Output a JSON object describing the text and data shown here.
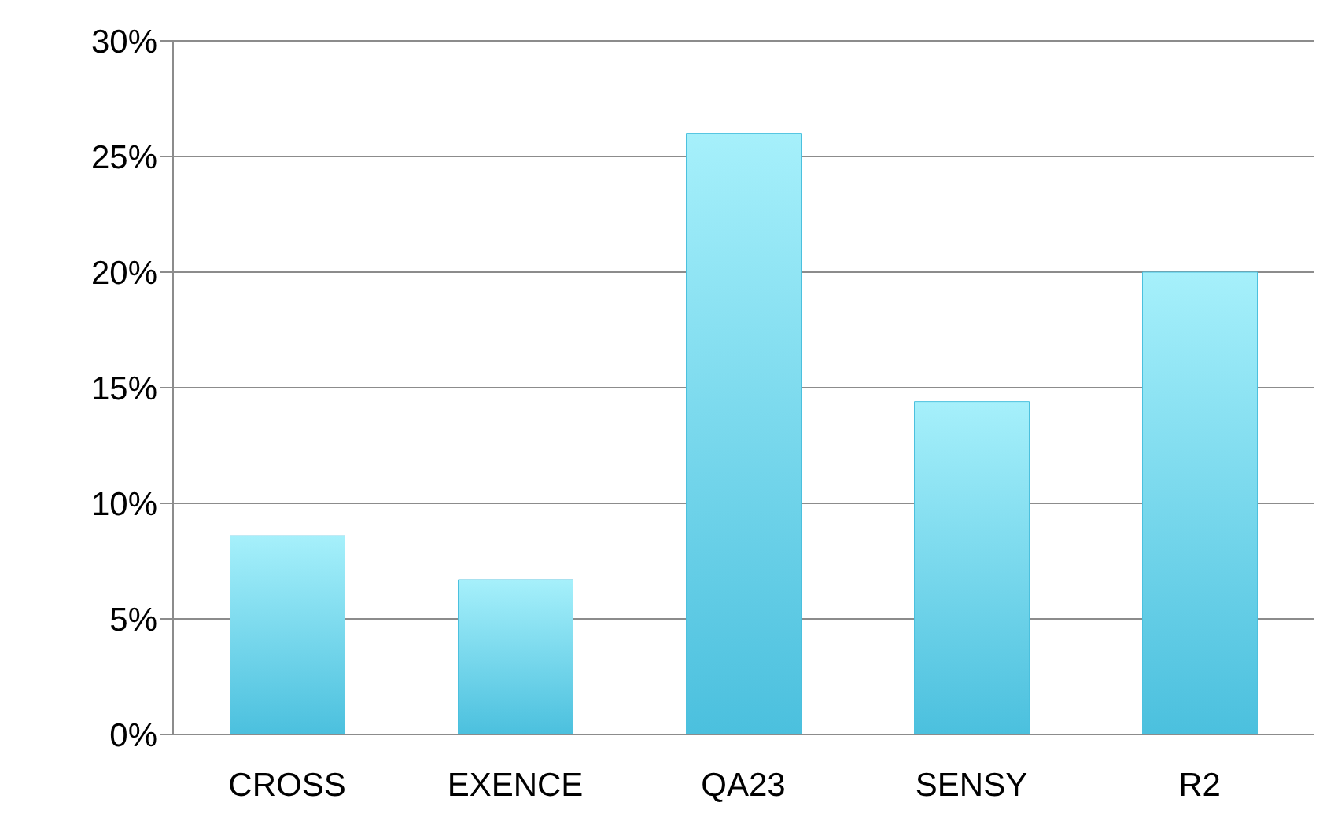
{
  "chart_data": {
    "type": "bar",
    "categories": [
      "CROSS",
      "EXENCE",
      "QA23",
      "SENSY",
      "R2"
    ],
    "values": [
      8.6,
      6.7,
      26,
      14.4,
      20
    ],
    "color": "#4bc0de",
    "ylim": [
      0,
      30
    ],
    "yticks": [
      {
        "value": 0,
        "label": "0%"
      },
      {
        "value": 5,
        "label": "5%"
      },
      {
        "value": 10,
        "label": "10%"
      },
      {
        "value": 15,
        "label": "15%"
      },
      {
        "value": 20,
        "label": "20%"
      },
      {
        "value": 25,
        "label": "25%"
      },
      {
        "value": 30,
        "label": "30%"
      }
    ],
    "grid": "y"
  }
}
